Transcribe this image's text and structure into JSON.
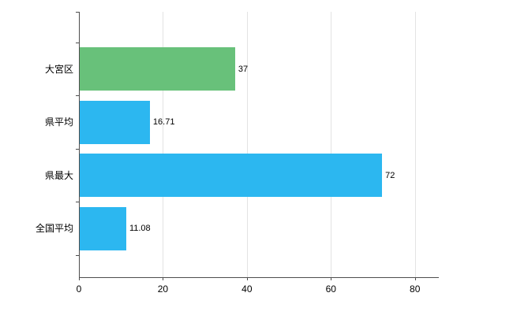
{
  "chart_data": {
    "type": "bar",
    "orientation": "horizontal",
    "title": "",
    "xlabel": "",
    "ylabel": "",
    "categories": [
      "大宮区",
      "県平均",
      "県最大",
      "全国平均"
    ],
    "values": [
      37,
      16.71,
      72,
      11.08
    ],
    "value_labels": [
      "37",
      "16.71",
      "72",
      "11.08"
    ],
    "bar_colors": [
      "#68c17a",
      "#2cb7f0",
      "#2cb7f0",
      "#2cb7f0"
    ],
    "x_ticks": [
      0,
      20,
      40,
      60,
      80
    ],
    "x_tick_labels": [
      "0",
      "20",
      "40",
      "60",
      "80"
    ],
    "xlim": [
      0,
      85.5
    ],
    "grid": "vertical",
    "legend": "none"
  },
  "colors": {
    "background": "#ffffff",
    "grid": "#e3e3e3",
    "axis": "#4d4d4d",
    "text": "#000000"
  }
}
